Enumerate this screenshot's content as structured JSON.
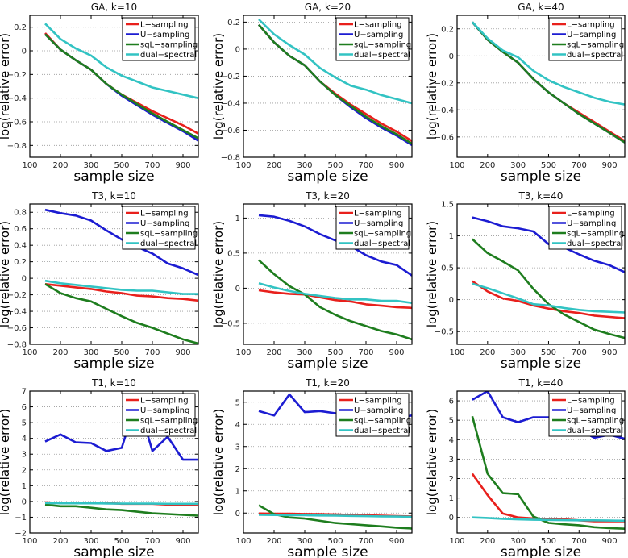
{
  "chart_data": [
    {
      "type": "line",
      "title": "GA, k=10",
      "xlabel": "sample size",
      "ylabel": "log(relative error)",
      "ylim": [
        -0.9,
        0.3
      ],
      "yticks": [
        -0.8,
        -0.6,
        -0.4,
        -0.2,
        0,
        0.2
      ],
      "ytick_labels": [
        "−0.8",
        "−0.6",
        "−0.4",
        "−0.2",
        "0",
        "0.2"
      ],
      "grid": "horizontal dotted",
      "legend": "top-right",
      "x": [
        150,
        200,
        250,
        300,
        400,
        500,
        600,
        700,
        800,
        900,
        1000
      ],
      "xtick_labels": [
        "100",
        "200",
        "300",
        "500",
        "700",
        "900"
      ],
      "series": [
        {
          "name": "L−sampling",
          "values": [
            0.15,
            0.01,
            -0.08,
            -0.16,
            -0.28,
            -0.37,
            -0.44,
            -0.51,
            -0.57,
            -0.63,
            -0.7
          ]
        },
        {
          "name": "U−sampling",
          "values": [
            0.14,
            0.01,
            -0.08,
            -0.16,
            -0.28,
            -0.38,
            -0.46,
            -0.54,
            -0.61,
            -0.68,
            -0.76
          ]
        },
        {
          "name": "sqL−sampling",
          "values": [
            0.14,
            0.01,
            -0.08,
            -0.16,
            -0.28,
            -0.37,
            -0.45,
            -0.53,
            -0.6,
            -0.67,
            -0.74
          ]
        },
        {
          "name": "dual−spectral",
          "values": [
            0.23,
            0.1,
            0.02,
            -0.04,
            -0.14,
            -0.21,
            -0.26,
            -0.31,
            -0.34,
            -0.37,
            -0.4
          ]
        }
      ]
    },
    {
      "type": "line",
      "title": "GA, k=20",
      "xlabel": "sample size",
      "ylabel": "log(relative error)",
      "ylim": [
        -0.8,
        0.25
      ],
      "yticks": [
        -0.8,
        -0.6,
        -0.4,
        -0.2,
        0,
        0.2
      ],
      "ytick_labels": [
        "−0.8",
        "−0.6",
        "−0.4",
        "−0.2",
        "0",
        "0.2"
      ],
      "grid": "horizontal dotted",
      "legend": "top-right",
      "x": [
        150,
        200,
        250,
        300,
        400,
        500,
        600,
        700,
        800,
        900,
        1000
      ],
      "xtick_labels": [
        "100",
        "200",
        "300",
        "500",
        "700",
        "900"
      ],
      "series": [
        {
          "name": "L−sampling",
          "values": [
            0.18,
            0.05,
            -0.05,
            -0.12,
            -0.24,
            -0.33,
            -0.41,
            -0.48,
            -0.55,
            -0.61,
            -0.68
          ]
        },
        {
          "name": "U−sampling",
          "values": [
            0.18,
            0.05,
            -0.05,
            -0.12,
            -0.24,
            -0.34,
            -0.43,
            -0.51,
            -0.58,
            -0.64,
            -0.71
          ]
        },
        {
          "name": "sqL−sampling",
          "values": [
            0.18,
            0.05,
            -0.05,
            -0.12,
            -0.24,
            -0.34,
            -0.42,
            -0.5,
            -0.57,
            -0.63,
            -0.7
          ]
        },
        {
          "name": "dual−spectral",
          "values": [
            0.22,
            0.11,
            0.03,
            -0.04,
            -0.14,
            -0.21,
            -0.27,
            -0.3,
            -0.34,
            -0.37,
            -0.4
          ]
        }
      ]
    },
    {
      "type": "line",
      "title": "GA, k=40",
      "xlabel": "sample size",
      "ylabel": "log(relative error)",
      "ylim": [
        -0.75,
        0.3
      ],
      "yticks": [
        -0.6,
        -0.4,
        -0.2,
        0,
        0.2
      ],
      "ytick_labels": [
        "−0.6",
        "−0.4",
        "−0.2",
        "0",
        "0.2"
      ],
      "grid": "horizontal dotted",
      "legend": "top-right",
      "x": [
        150,
        200,
        250,
        300,
        400,
        500,
        600,
        700,
        800,
        900,
        1000
      ],
      "xtick_labels": [
        "100",
        "200",
        "300",
        "500",
        "700",
        "900"
      ],
      "series": [
        {
          "name": "L−sampling",
          "values": [
            0.25,
            0.12,
            0.03,
            -0.05,
            -0.17,
            -0.27,
            -0.35,
            -0.42,
            -0.49,
            -0.56,
            -0.63
          ]
        },
        {
          "name": "U−sampling",
          "values": [
            0.25,
            0.12,
            0.03,
            -0.05,
            -0.17,
            -0.27,
            -0.35,
            -0.43,
            -0.5,
            -0.57,
            -0.64
          ]
        },
        {
          "name": "sqL−sampling",
          "values": [
            0.25,
            0.12,
            0.03,
            -0.05,
            -0.17,
            -0.27,
            -0.35,
            -0.43,
            -0.5,
            -0.57,
            -0.64
          ]
        },
        {
          "name": "dual−spectral",
          "values": [
            0.25,
            0.13,
            0.04,
            -0.01,
            -0.11,
            -0.18,
            -0.23,
            -0.27,
            -0.31,
            -0.34,
            -0.36
          ]
        }
      ]
    },
    {
      "type": "line",
      "title": "T3, k=10",
      "xlabel": "sample size",
      "ylabel": "log(relative error)",
      "ylim": [
        -0.8,
        0.9
      ],
      "yticks": [
        -0.8,
        -0.6,
        -0.4,
        -0.2,
        0,
        0.2,
        0.4,
        0.6,
        0.8
      ],
      "ytick_labels": [
        "−0.8",
        "−0.6",
        "−0.4",
        "−0.2",
        "0",
        "0.2",
        "0.4",
        "0.6",
        "0.8"
      ],
      "grid": "horizontal dotted",
      "legend": "top-right",
      "x": [
        150,
        200,
        250,
        300,
        400,
        500,
        600,
        700,
        800,
        900,
        1000
      ],
      "xtick_labels": [
        "100",
        "200",
        "300",
        "500",
        "700",
        "900"
      ],
      "series": [
        {
          "name": "L−sampling",
          "values": [
            -0.07,
            -0.09,
            -0.11,
            -0.13,
            -0.16,
            -0.18,
            -0.21,
            -0.22,
            -0.24,
            -0.25,
            -0.27
          ]
        },
        {
          "name": "U−sampling",
          "values": [
            0.83,
            0.79,
            0.76,
            0.7,
            0.58,
            0.47,
            0.38,
            0.3,
            0.18,
            0.12,
            0.04
          ]
        },
        {
          "name": "sqL−sampling",
          "values": [
            -0.07,
            -0.18,
            -0.24,
            -0.28,
            -0.37,
            -0.46,
            -0.54,
            -0.6,
            -0.67,
            -0.74,
            -0.79
          ]
        },
        {
          "name": "dual−spectral",
          "values": [
            -0.03,
            -0.06,
            -0.08,
            -0.1,
            -0.12,
            -0.14,
            -0.15,
            -0.15,
            -0.17,
            -0.19,
            -0.19
          ]
        }
      ]
    },
    {
      "type": "line",
      "title": "T3, k=20",
      "xlabel": "sample size",
      "ylabel": "log(relative error)",
      "ylim": [
        -0.8,
        1.2
      ],
      "yticks": [
        -0.5,
        0,
        0.5,
        1
      ],
      "ytick_labels": [
        "−0.5",
        "0",
        "0.5",
        "1"
      ],
      "grid": "horizontal dotted",
      "legend": "top-right",
      "x": [
        150,
        200,
        250,
        300,
        400,
        500,
        600,
        700,
        800,
        900,
        1000
      ],
      "xtick_labels": [
        "100",
        "200",
        "300",
        "500",
        "700",
        "900"
      ],
      "series": [
        {
          "name": "L−sampling",
          "values": [
            -0.03,
            -0.06,
            -0.08,
            -0.09,
            -0.13,
            -0.17,
            -0.19,
            -0.23,
            -0.25,
            -0.27,
            -0.28
          ]
        },
        {
          "name": "U−sampling",
          "values": [
            1.04,
            1.02,
            0.96,
            0.88,
            0.77,
            0.68,
            0.6,
            0.47,
            0.38,
            0.33,
            0.18
          ]
        },
        {
          "name": "sqL−sampling",
          "values": [
            0.4,
            0.2,
            0.03,
            -0.09,
            -0.27,
            -0.38,
            -0.47,
            -0.54,
            -0.61,
            -0.66,
            -0.73
          ]
        },
        {
          "name": "dual−spectral",
          "values": [
            0.07,
            0.01,
            -0.04,
            -0.08,
            -0.11,
            -0.14,
            -0.16,
            -0.16,
            -0.18,
            -0.18,
            -0.21
          ]
        }
      ]
    },
    {
      "type": "line",
      "title": "T3, k=40",
      "xlabel": "sample size",
      "ylabel": "log(relative error)",
      "ylim": [
        -0.7,
        1.5
      ],
      "yticks": [
        -0.5,
        0,
        0.5,
        1,
        1.5
      ],
      "ytick_labels": [
        "−0.5",
        "0",
        "0.5",
        "1",
        "1.5"
      ],
      "grid": "horizontal dotted",
      "legend": "top-right",
      "x": [
        150,
        200,
        250,
        300,
        400,
        500,
        600,
        700,
        800,
        900,
        1000
      ],
      "xtick_labels": [
        "100",
        "200",
        "300",
        "500",
        "700",
        "900"
      ],
      "series": [
        {
          "name": "L−sampling",
          "values": [
            0.29,
            0.13,
            0.02,
            -0.02,
            -0.09,
            -0.14,
            -0.18,
            -0.21,
            -0.25,
            -0.27,
            -0.29
          ]
        },
        {
          "name": "U−sampling",
          "values": [
            1.29,
            1.23,
            1.15,
            1.12,
            1.07,
            0.87,
            0.82,
            0.71,
            0.61,
            0.54,
            0.43
          ]
        },
        {
          "name": "sqL−sampling",
          "values": [
            0.95,
            0.73,
            0.6,
            0.46,
            0.17,
            -0.07,
            -0.23,
            -0.35,
            -0.47,
            -0.54,
            -0.6
          ]
        },
        {
          "name": "dual−spectral",
          "values": [
            0.25,
            0.18,
            0.1,
            0.02,
            -0.07,
            -0.09,
            -0.13,
            -0.16,
            -0.18,
            -0.19,
            -0.2
          ]
        }
      ]
    },
    {
      "type": "line",
      "title": "T1, k=10",
      "xlabel": "sample size",
      "ylabel": "log(relative error)",
      "ylim": [
        -2,
        7
      ],
      "yticks": [
        -2,
        -1,
        0,
        1,
        2,
        3,
        4,
        5,
        6,
        7
      ],
      "ytick_labels": [
        "−2",
        "−1",
        "0",
        "1",
        "2",
        "3",
        "4",
        "5",
        "6",
        "7"
      ],
      "grid": "horizontal dotted",
      "legend": "top-right",
      "x": [
        150,
        200,
        250,
        300,
        400,
        500,
        600,
        700,
        800,
        900,
        1000
      ],
      "xtick_labels": [
        "100",
        "200",
        "300",
        "500",
        "700",
        "900"
      ],
      "series": [
        {
          "name": "L−sampling",
          "values": [
            -0.05,
            -0.1,
            -0.1,
            -0.1,
            -0.1,
            -0.15,
            -0.15,
            -0.15,
            -0.2,
            -0.2,
            -0.2
          ]
        },
        {
          "name": "U−sampling",
          "values": [
            3.8,
            4.25,
            3.75,
            3.7,
            3.2,
            3.4,
            6.5,
            3.2,
            4.1,
            2.65,
            2.65
          ]
        },
        {
          "name": "sqL−sampling",
          "values": [
            -0.2,
            -0.3,
            -0.3,
            -0.4,
            -0.5,
            -0.55,
            -0.65,
            -0.75,
            -0.8,
            -0.85,
            -0.9
          ]
        },
        {
          "name": "dual−spectral",
          "values": [
            -0.1,
            -0.12,
            -0.12,
            -0.12,
            -0.13,
            -0.14,
            -0.14,
            -0.14,
            -0.15,
            -0.15,
            -0.15
          ]
        }
      ]
    },
    {
      "type": "line",
      "title": "T1, k=20",
      "xlabel": "sample size",
      "ylabel": "log(relative error)",
      "ylim": [
        -0.9,
        5.5
      ],
      "yticks": [
        0,
        1,
        2,
        3,
        4,
        5
      ],
      "ytick_labels": [
        "0",
        "1",
        "2",
        "3",
        "4",
        "5"
      ],
      "grid": "horizontal dotted",
      "legend": "top-right",
      "x": [
        150,
        200,
        250,
        300,
        400,
        500,
        600,
        700,
        800,
        900,
        1000
      ],
      "xtick_labels": [
        "100",
        "200",
        "300",
        "500",
        "700",
        "900"
      ],
      "series": [
        {
          "name": "L−sampling",
          "values": [
            -0.02,
            -0.03,
            -0.03,
            -0.04,
            -0.05,
            -0.06,
            -0.08,
            -0.1,
            -0.12,
            -0.14,
            -0.15
          ]
        },
        {
          "name": "U−sampling",
          "values": [
            4.6,
            4.4,
            5.35,
            4.55,
            4.6,
            4.5,
            4.4,
            4.3,
            3.55,
            4.3,
            4.4
          ]
        },
        {
          "name": "sqL−sampling",
          "values": [
            0.35,
            -0.05,
            -0.2,
            -0.25,
            -0.35,
            -0.45,
            -0.5,
            -0.55,
            -0.6,
            -0.66,
            -0.7
          ]
        },
        {
          "name": "dual−spectral",
          "values": [
            -0.08,
            -0.09,
            -0.1,
            -0.1,
            -0.11,
            -0.12,
            -0.13,
            -0.14,
            -0.15,
            -0.16,
            -0.17
          ]
        }
      ]
    },
    {
      "type": "line",
      "title": "T1, k=40",
      "xlabel": "sample size",
      "ylabel": "log(relative error)",
      "ylim": [
        -0.8,
        6.5
      ],
      "yticks": [
        0,
        1,
        2,
        3,
        4,
        5,
        6
      ],
      "ytick_labels": [
        "0",
        "1",
        "2",
        "3",
        "4",
        "5",
        "6"
      ],
      "grid": "horizontal dotted",
      "legend": "top-right",
      "x": [
        150,
        200,
        250,
        300,
        400,
        500,
        600,
        700,
        800,
        900,
        1000
      ],
      "xtick_labels": [
        "100",
        "200",
        "300",
        "500",
        "700",
        "900"
      ],
      "series": [
        {
          "name": "L−sampling",
          "values": [
            2.25,
            1.15,
            0.2,
            0.0,
            -0.05,
            -0.1,
            -0.1,
            -0.15,
            -0.2,
            -0.2,
            -0.2
          ]
        },
        {
          "name": "U−sampling",
          "values": [
            6.05,
            6.5,
            5.15,
            4.9,
            5.15,
            5.15,
            4.8,
            4.5,
            4.1,
            4.25,
            4.05
          ]
        },
        {
          "name": "sqL−sampling",
          "values": [
            5.2,
            2.25,
            1.25,
            1.2,
            0.05,
            -0.28,
            -0.35,
            -0.4,
            -0.5,
            -0.55,
            -0.58
          ]
        },
        {
          "name": "dual−spectral",
          "values": [
            0.0,
            -0.03,
            -0.07,
            -0.1,
            -0.12,
            -0.13,
            -0.14,
            -0.15,
            -0.15,
            -0.16,
            -0.17
          ]
        }
      ]
    }
  ],
  "series_colors": {
    "L−sampling": "#e8201c",
    "U−sampling": "#1c1cd2",
    "sqL−sampling": "#1e7d1e",
    "dual−spectral": "#32c3c3"
  }
}
